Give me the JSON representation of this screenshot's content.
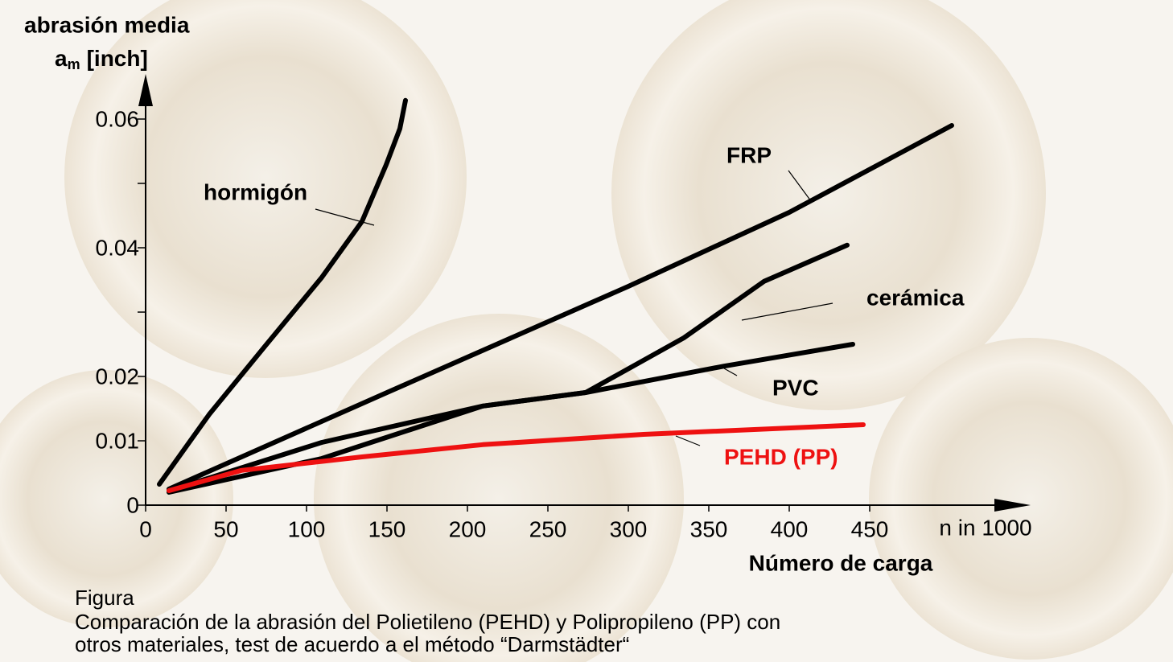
{
  "chart_data": {
    "type": "line",
    "y_label": "abrasión media",
    "y_unit_symbol": "a",
    "y_unit_sub": "m",
    "y_unit": "[inch]",
    "x_label": "Número de carga",
    "x_unit": "n in 1000",
    "xlim": [
      0,
      550
    ],
    "xticks": [
      0,
      50,
      100,
      150,
      200,
      250,
      300,
      350,
      400,
      450
    ],
    "ylim": [
      0,
      0.067
    ],
    "yticks": [
      0,
      0.01,
      0.02,
      0.04,
      0.06
    ],
    "yminorticks": [
      0.03,
      0.05
    ],
    "series": [
      {
        "name": "hormigón",
        "color": "#000000",
        "x": [
          8.5,
          39.5,
          74.5,
          109.5,
          134.5,
          149.5,
          158,
          161.5
        ],
        "values": [
          0.00325,
          0.0141,
          0.0248,
          0.0354,
          0.0441,
          0.0529,
          0.0585,
          0.0629
        ]
      },
      {
        "name": "FRP",
        "color": "#000000",
        "x": [
          14.5,
          150,
          300,
          400,
          501
        ],
        "values": [
          0.0025,
          0.0175,
          0.034,
          0.0455,
          0.059
        ]
      },
      {
        "name": "cerámica",
        "color": "#000000",
        "x": [
          14.5,
          109.5,
          209.5,
          273.5,
          334.5,
          384.5,
          436
        ],
        "values": [
          0.002,
          0.00725,
          0.0154,
          0.0175,
          0.026,
          0.0348,
          0.0404
        ]
      },
      {
        "name": "PVC",
        "color": "#000000",
        "x": [
          14.5,
          109.5,
          209.5,
          273.5,
          359.5,
          439.5
        ],
        "values": [
          0.00225,
          0.00975,
          0.0154,
          0.0175,
          0.0216,
          0.025
        ]
      },
      {
        "name": "PEHD (PP)",
        "color": "#ee1111",
        "x": [
          14.5,
          59.5,
          134.5,
          209.5,
          309.5,
          446
        ],
        "values": [
          0.00225,
          0.0054,
          0.0075,
          0.0094,
          0.011,
          0.0125
        ]
      }
    ]
  },
  "caption": {
    "heading": "Figura",
    "lines": [
      "Comparación de la abrasión del Polietileno (PEHD) y Polipropileno (PP) con",
      "otros materiales, test de acuerdo a el método “Darmstädter“"
    ]
  }
}
